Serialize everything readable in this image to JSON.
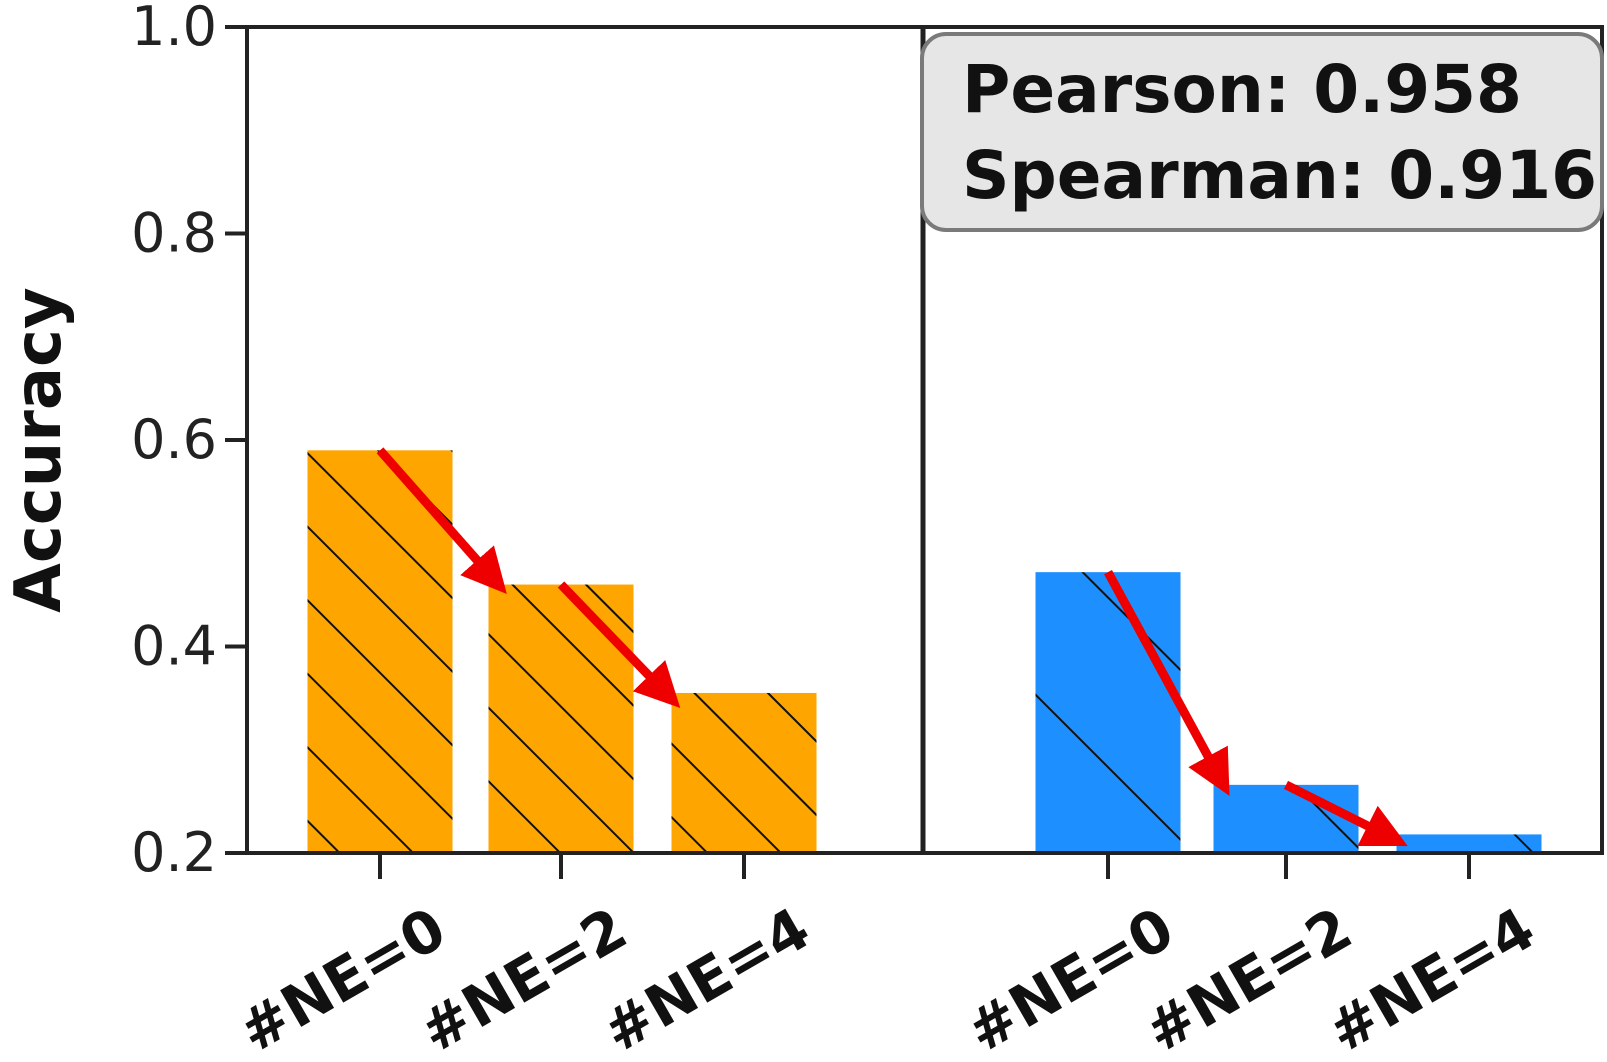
{
  "chart_data": {
    "type": "bar",
    "ylabel": "Accuracy",
    "ylim": [
      0.2,
      1.0
    ],
    "yticks": [
      "0.2",
      "0.4",
      "0.6",
      "0.8",
      "1.0"
    ],
    "panels": [
      {
        "categories": [
          "#NE=0",
          "#NE=2",
          "#NE=4"
        ],
        "values": [
          0.59,
          0.46,
          0.355
        ],
        "color": "#FFA500",
        "hatch": "dense-diagonal",
        "trend_arrow_color": "#EE0000"
      },
      {
        "categories": [
          "#NE=0",
          "#NE=2",
          "#NE=4"
        ],
        "values": [
          0.472,
          0.266,
          0.218
        ],
        "color": "#1E8FFF",
        "hatch": "sparse-diagonal",
        "trend_arrow_color": "#EE0000"
      }
    ],
    "annotation": {
      "lines": [
        "Pearson: 0.958",
        "Spearman: 0.916"
      ],
      "location": "top-right"
    },
    "grid": false
  }
}
